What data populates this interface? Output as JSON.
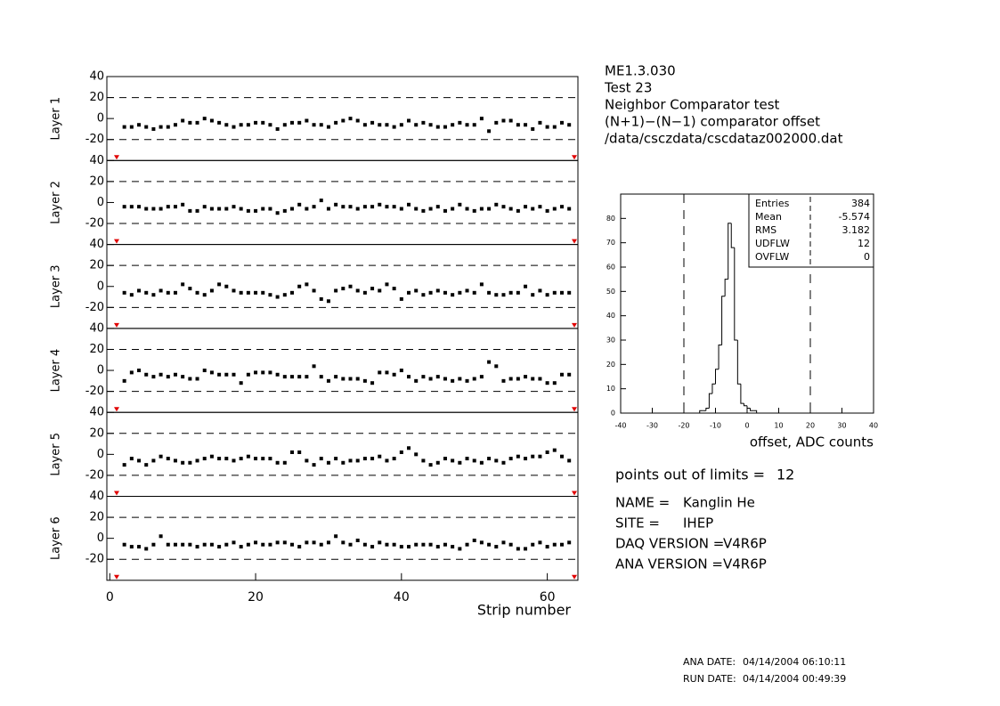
{
  "chart_data": [
    {
      "type": "scatter",
      "ylabel": "Layer 1",
      "xlim": [
        -0.4,
        64.2
      ],
      "ylim": [
        -40,
        40
      ],
      "yticks": [
        -20,
        0,
        20,
        40
      ],
      "limit_lines": [
        -20,
        20
      ],
      "color": "#000000",
      "x": [
        2,
        3,
        4,
        5,
        6,
        7,
        8,
        9,
        10,
        11,
        12,
        13,
        14,
        15,
        16,
        17,
        18,
        19,
        20,
        21,
        22,
        23,
        24,
        25,
        26,
        27,
        28,
        29,
        30,
        31,
        32,
        33,
        34,
        35,
        36,
        37,
        38,
        39,
        40,
        41,
        42,
        43,
        44,
        45,
        46,
        47,
        48,
        49,
        50,
        51,
        52,
        53,
        54,
        55,
        56,
        57,
        58,
        59,
        60,
        61,
        62,
        63
      ],
      "values": [
        -8,
        -8,
        -6,
        -8,
        -10,
        -8,
        -8,
        -6,
        -2,
        -4,
        -4,
        0,
        -2,
        -4,
        -6,
        -8,
        -6,
        -6,
        -4,
        -4,
        -6,
        -10,
        -6,
        -4,
        -4,
        -2,
        -6,
        -6,
        -8,
        -4,
        -2,
        0,
        -2,
        -6,
        -4,
        -6,
        -6,
        -8,
        -6,
        -2,
        -6,
        -4,
        -6,
        -8,
        -8,
        -6,
        -4,
        -6,
        -6,
        0,
        -12,
        -4,
        -2,
        -2,
        -6,
        -6,
        -10,
        -4,
        -8,
        -8,
        -4,
        -6
      ]
    },
    {
      "type": "scatter",
      "ylabel": "Layer 2",
      "xlim": [
        -0.4,
        64.2
      ],
      "ylim": [
        -40,
        40
      ],
      "yticks": [
        -20,
        0,
        20,
        40
      ],
      "limit_lines": [
        -20,
        20
      ],
      "color": "#000000",
      "x": [
        2,
        3,
        4,
        5,
        6,
        7,
        8,
        9,
        10,
        11,
        12,
        13,
        14,
        15,
        16,
        17,
        18,
        19,
        20,
        21,
        22,
        23,
        24,
        25,
        26,
        27,
        28,
        29,
        30,
        31,
        32,
        33,
        34,
        35,
        36,
        37,
        38,
        39,
        40,
        41,
        42,
        43,
        44,
        45,
        46,
        47,
        48,
        49,
        50,
        51,
        52,
        53,
        54,
        55,
        56,
        57,
        58,
        59,
        60,
        61,
        62,
        63
      ],
      "values": [
        -4,
        -4,
        -4,
        -6,
        -6,
        -6,
        -4,
        -4,
        -2,
        -8,
        -8,
        -4,
        -6,
        -6,
        -6,
        -4,
        -6,
        -8,
        -8,
        -6,
        -6,
        -10,
        -8,
        -6,
        -2,
        -6,
        -4,
        2,
        -6,
        -2,
        -4,
        -4,
        -6,
        -4,
        -4,
        -2,
        -4,
        -4,
        -6,
        -2,
        -6,
        -8,
        -6,
        -4,
        -8,
        -6,
        -2,
        -6,
        -8,
        -6,
        -6,
        -2,
        -4,
        -6,
        -8,
        -4,
        -6,
        -4,
        -8,
        -6,
        -4,
        -6
      ]
    },
    {
      "type": "scatter",
      "ylabel": "Layer 3",
      "xlim": [
        -0.4,
        64.2
      ],
      "ylim": [
        -40,
        40
      ],
      "yticks": [
        -20,
        0,
        20,
        40
      ],
      "limit_lines": [
        -20,
        20
      ],
      "color": "#000000",
      "x": [
        2,
        3,
        4,
        5,
        6,
        7,
        8,
        9,
        10,
        11,
        12,
        13,
        14,
        15,
        16,
        17,
        18,
        19,
        20,
        21,
        22,
        23,
        24,
        25,
        26,
        27,
        28,
        29,
        30,
        31,
        32,
        33,
        34,
        35,
        36,
        37,
        38,
        39,
        40,
        41,
        42,
        43,
        44,
        45,
        46,
        47,
        48,
        49,
        50,
        51,
        52,
        53,
        54,
        55,
        56,
        57,
        58,
        59,
        60,
        61,
        62,
        63
      ],
      "values": [
        -6,
        -8,
        -4,
        -6,
        -8,
        -4,
        -6,
        -6,
        2,
        -2,
        -6,
        -8,
        -4,
        2,
        0,
        -4,
        -6,
        -6,
        -6,
        -6,
        -8,
        -10,
        -8,
        -6,
        0,
        2,
        -4,
        -12,
        -14,
        -4,
        -2,
        0,
        -4,
        -6,
        -2,
        -4,
        2,
        -2,
        -12,
        -6,
        -4,
        -8,
        -6,
        -4,
        -6,
        -8,
        -6,
        -4,
        -6,
        2,
        -6,
        -8,
        -8,
        -6,
        -6,
        0,
        -8,
        -4,
        -8,
        -6,
        -6,
        -6
      ]
    },
    {
      "type": "scatter",
      "ylabel": "Layer 4",
      "xlim": [
        -0.4,
        64.2
      ],
      "ylim": [
        -40,
        40
      ],
      "yticks": [
        -20,
        0,
        20,
        40
      ],
      "limit_lines": [
        -20,
        20
      ],
      "color": "#000000",
      "x": [
        2,
        3,
        4,
        5,
        6,
        7,
        8,
        9,
        10,
        11,
        12,
        13,
        14,
        15,
        16,
        17,
        18,
        19,
        20,
        21,
        22,
        23,
        24,
        25,
        26,
        27,
        28,
        29,
        30,
        31,
        32,
        33,
        34,
        35,
        36,
        37,
        38,
        39,
        40,
        41,
        42,
        43,
        44,
        45,
        46,
        47,
        48,
        49,
        50,
        51,
        52,
        53,
        54,
        55,
        56,
        57,
        58,
        59,
        60,
        61,
        62,
        63
      ],
      "values": [
        -10,
        -2,
        0,
        -4,
        -6,
        -4,
        -6,
        -4,
        -6,
        -8,
        -8,
        0,
        -2,
        -4,
        -4,
        -4,
        -12,
        -4,
        -2,
        -2,
        -2,
        -4,
        -6,
        -6,
        -6,
        -6,
        4,
        -6,
        -10,
        -6,
        -8,
        -8,
        -8,
        -10,
        -12,
        -2,
        -2,
        -4,
        0,
        -6,
        -10,
        -6,
        -8,
        -6,
        -8,
        -10,
        -8,
        -10,
        -8,
        -6,
        8,
        4,
        -10,
        -8,
        -8,
        -6,
        -8,
        -8,
        -12,
        -12,
        -4,
        -4
      ]
    },
    {
      "type": "scatter",
      "ylabel": "Layer 5",
      "xlim": [
        -0.4,
        64.2
      ],
      "ylim": [
        -40,
        40
      ],
      "yticks": [
        -20,
        0,
        20,
        40
      ],
      "limit_lines": [
        -20,
        20
      ],
      "color": "#000000",
      "x": [
        2,
        3,
        4,
        5,
        6,
        7,
        8,
        9,
        10,
        11,
        12,
        13,
        14,
        15,
        16,
        17,
        18,
        19,
        20,
        21,
        22,
        23,
        24,
        25,
        26,
        27,
        28,
        29,
        30,
        31,
        32,
        33,
        34,
        35,
        36,
        37,
        38,
        39,
        40,
        41,
        42,
        43,
        44,
        45,
        46,
        47,
        48,
        49,
        50,
        51,
        52,
        53,
        54,
        55,
        56,
        57,
        58,
        59,
        60,
        61,
        62,
        63
      ],
      "values": [
        -10,
        -4,
        -6,
        -10,
        -6,
        -2,
        -4,
        -6,
        -8,
        -8,
        -6,
        -4,
        -2,
        -4,
        -4,
        -6,
        -4,
        -2,
        -4,
        -4,
        -4,
        -8,
        -8,
        2,
        2,
        -6,
        -10,
        -4,
        -8,
        -4,
        -8,
        -6,
        -6,
        -4,
        -4,
        -2,
        -6,
        -4,
        2,
        6,
        0,
        -6,
        -10,
        -8,
        -4,
        -6,
        -8,
        -4,
        -6,
        -8,
        -4,
        -6,
        -8,
        -4,
        -2,
        -4,
        -2,
        -2,
        2,
        4,
        -2,
        -6
      ]
    },
    {
      "type": "scatter",
      "ylabel": "Layer 6",
      "xlabel": "Strip number",
      "xlim": [
        -0.4,
        64.2
      ],
      "xticks": [
        0,
        20,
        40,
        60
      ],
      "ylim": [
        -40,
        40
      ],
      "yticks": [
        -20,
        0,
        20,
        40
      ],
      "limit_lines": [
        -20,
        20
      ],
      "color": "#000000",
      "x": [
        2,
        3,
        4,
        5,
        6,
        7,
        8,
        9,
        10,
        11,
        12,
        13,
        14,
        15,
        16,
        17,
        18,
        19,
        20,
        21,
        22,
        23,
        24,
        25,
        26,
        27,
        28,
        29,
        30,
        31,
        32,
        33,
        34,
        35,
        36,
        37,
        38,
        39,
        40,
        41,
        42,
        43,
        44,
        45,
        46,
        47,
        48,
        49,
        50,
        51,
        52,
        53,
        54,
        55,
        56,
        57,
        58,
        59,
        60,
        61,
        62,
        63
      ],
      "values": [
        -6,
        -8,
        -8,
        -10,
        -6,
        2,
        -6,
        -6,
        -6,
        -6,
        -8,
        -6,
        -6,
        -8,
        -6,
        -4,
        -8,
        -6,
        -4,
        -6,
        -6,
        -4,
        -4,
        -6,
        -8,
        -4,
        -4,
        -6,
        -4,
        2,
        -4,
        -6,
        -2,
        -6,
        -8,
        -4,
        -6,
        -6,
        -8,
        -8,
        -6,
        -6,
        -6,
        -8,
        -6,
        -8,
        -10,
        -6,
        -2,
        -4,
        -6,
        -8,
        -4,
        -6,
        -10,
        -10,
        -6,
        -4,
        -8,
        -6,
        -6,
        -4
      ]
    },
    {
      "type": "histogram",
      "xlabel": "offset, ADC counts",
      "xlim": [
        -40,
        40
      ],
      "xticks": [
        -40,
        -30,
        -20,
        -10,
        0,
        10,
        20,
        30,
        40
      ],
      "ylim": [
        0,
        90
      ],
      "yticks": [
        0,
        10,
        20,
        30,
        40,
        50,
        60,
        70,
        80
      ],
      "limit_lines": [
        -20,
        20
      ],
      "color": "#000000",
      "bins": [
        -15,
        -14,
        -13,
        -12,
        -11,
        -10,
        -9,
        -8,
        -7,
        -6,
        -5,
        -4,
        -3,
        -2,
        -1,
        0,
        1,
        2,
        3
      ],
      "values": [
        1,
        1,
        2,
        8,
        12,
        18,
        28,
        48,
        55,
        78,
        68,
        30,
        12,
        4,
        3,
        2,
        1,
        1
      ],
      "stats": [
        {
          "name": "Entries",
          "value": 384
        },
        {
          "name": "Mean",
          "value": -5.574
        },
        {
          "name": "RMS",
          "value": 3.182
        },
        {
          "name": "UDFLW",
          "value": 12
        },
        {
          "name": "OVFLW",
          "value": 0
        }
      ]
    }
  ],
  "info": {
    "title_lines": [
      "ME1.3.030",
      "Test 23",
      "Neighbor Comparator test",
      "(N+1)−(N−1) comparator offset",
      "/data/csczdata/cscdataz002000.dat"
    ],
    "out_of_limits": {
      "label": "points out of limits =",
      "value": 12
    },
    "fields": [
      {
        "label": "NAME =",
        "value": "Kanglin He"
      },
      {
        "label": "SITE =",
        "value": "IHEP"
      },
      {
        "label": "DAQ VERSION =",
        "value": "V4R6P"
      },
      {
        "label": "ANA VERSION =",
        "value": "V4R6P"
      }
    ],
    "dates": [
      {
        "label": "ANA DATE:",
        "value": "04/14/2004 06:10:11"
      },
      {
        "label": "RUN DATE:",
        "value": "04/14/2004 00:49:39"
      }
    ]
  }
}
